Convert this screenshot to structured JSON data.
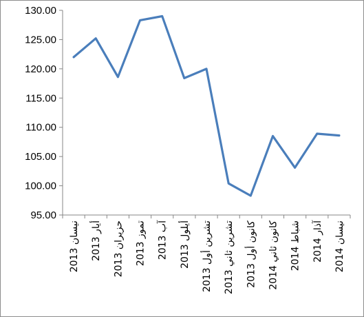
{
  "chart_data": {
    "type": "line",
    "title": "",
    "xlabel": "",
    "ylabel": "",
    "ylim": [
      95,
      130
    ],
    "yticks": [
      "95.00",
      "100.00",
      "105.00",
      "110.00",
      "115.00",
      "120.00",
      "125.00",
      "130.00"
    ],
    "ytick_values": [
      95,
      100,
      105,
      110,
      115,
      120,
      125,
      130
    ],
    "categories": [
      "نيسان 2013",
      "أيار 2013",
      "حزيران 2013",
      "تموز 2013",
      "آب 2013",
      "أيلول 2013",
      "تشرين أول 2013",
      "تشرين ثاني 2013",
      "كانون أول 2013",
      "كانون ثاني 2014",
      "شباط 2014",
      "آذار 2014",
      "نيسان 2014"
    ],
    "series": [
      {
        "values": [
          122.0,
          125.2,
          118.6,
          128.3,
          129.0,
          118.4,
          120.0,
          100.4,
          98.3,
          108.5,
          103.1,
          108.9,
          108.6
        ]
      }
    ],
    "grid": false,
    "legend": "none",
    "line_color": "#4a7ebb",
    "axis_color": "#868686"
  }
}
